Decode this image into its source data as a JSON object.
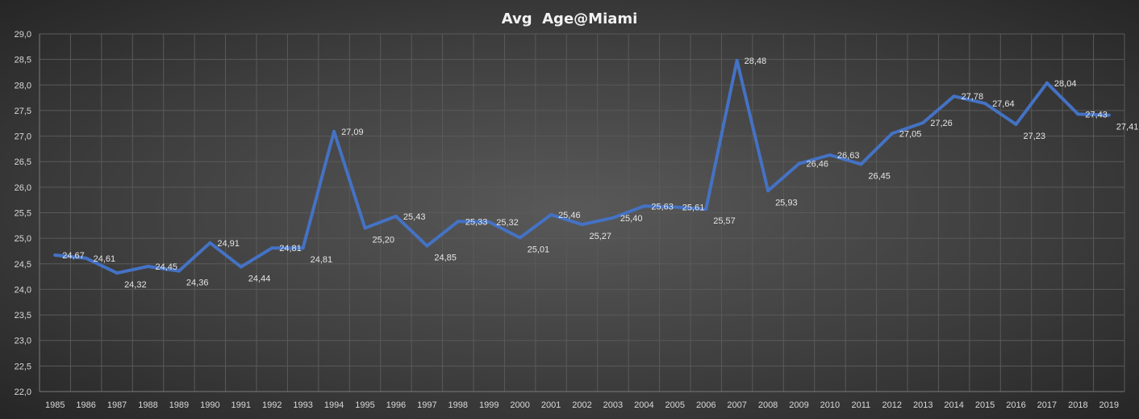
{
  "chart_data": {
    "type": "line",
    "title": "Avg  Age@Miami",
    "xlabel": "",
    "ylabel": "",
    "ylim": [
      22.0,
      29.0
    ],
    "ytick_step": 0.5,
    "yticks": [
      "22,0",
      "22,5",
      "23,0",
      "23,5",
      "24,0",
      "24,5",
      "25,0",
      "25,5",
      "26,0",
      "26,5",
      "27,0",
      "27,5",
      "28,0",
      "28,5",
      "29,0"
    ],
    "grid": true,
    "categories": [
      "1985",
      "1986",
      "1987",
      "1988",
      "1989",
      "1990",
      "1991",
      "1992",
      "1993",
      "1994",
      "1995",
      "1996",
      "1997",
      "1998",
      "1999",
      "2000",
      "2001",
      "2002",
      "2003",
      "2004",
      "2005",
      "2006",
      "2007",
      "2008",
      "2009",
      "2010",
      "2011",
      "2012",
      "2013",
      "2014",
      "2015",
      "2016",
      "2017",
      "2018",
      "2019"
    ],
    "series": [
      {
        "name": "Avg Age",
        "color": "#4472c4",
        "values": [
          24.67,
          24.61,
          24.32,
          24.45,
          24.36,
          24.91,
          24.44,
          24.81,
          24.81,
          27.09,
          25.2,
          25.43,
          24.85,
          25.33,
          25.32,
          25.01,
          25.46,
          25.27,
          25.4,
          25.63,
          25.61,
          25.57,
          28.48,
          25.93,
          26.46,
          26.63,
          26.45,
          27.05,
          27.26,
          27.78,
          27.64,
          27.23,
          28.04,
          27.43,
          27.41
        ],
        "labels": [
          "24,67",
          "24,61",
          "24,32",
          "24,45",
          "24,36",
          "24,91",
          "24,44",
          "24,81",
          "24,81",
          "27,09",
          "25,20",
          "25,43",
          "24,85",
          "25,33",
          "25,32",
          "25,01",
          "25,46",
          "25,27",
          "25,40",
          "25,63",
          "25,61",
          "25,57",
          "28,48",
          "25,93",
          "26,46",
          "26,63",
          "26,45",
          "27,05",
          "27,26",
          "27,78",
          "27,64",
          "27,23",
          "28,04",
          "27,43",
          "27,41"
        ]
      }
    ]
  }
}
